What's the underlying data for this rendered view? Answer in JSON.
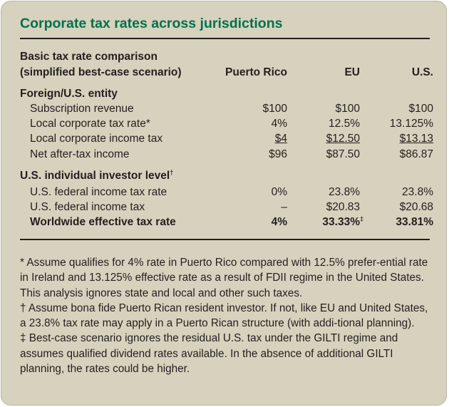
{
  "title": "Corporate tax rates across jurisdictions",
  "header": {
    "line1": "Basic tax rate comparison",
    "line2": "(simplified best-case scenario)",
    "cols": [
      "Puerto Rico",
      "EU",
      "U.S."
    ]
  },
  "section1": {
    "heading": "Foreign/U.S. entity",
    "rows": [
      {
        "label": "Subscription revenue",
        "values": [
          "$100",
          "$100",
          "$100"
        ]
      },
      {
        "label": "Local corporate tax rate*",
        "values": [
          "4%",
          "12.5%",
          "13.125%"
        ]
      },
      {
        "label": "Local corporate income tax",
        "values": [
          "$4",
          "$12.50",
          "$13.13"
        ]
      },
      {
        "label": "Net after-tax income",
        "values": [
          "$96",
          "$87.50",
          "$86.87"
        ]
      }
    ]
  },
  "section2": {
    "heading": "U.S. individual investor level",
    "heading_mark": "†",
    "rows": [
      {
        "label": "U.S. federal income tax rate",
        "values": [
          "0%",
          "23.8%",
          "23.8%"
        ]
      },
      {
        "label": "U.S. federal income tax",
        "values": [
          "–",
          "$20.83",
          "$20.68"
        ]
      },
      {
        "label": "Worldwide effective tax rate",
        "values": [
          "4%",
          "33.33%",
          "33.81%"
        ],
        "mark": "‡"
      }
    ]
  },
  "notes": [
    "* Assume qualifies for 4% rate in Puerto Rico compared with 12.5% prefer-ential rate in Ireland and 13.125% effective rate as a result of FDII regime in the United States. This analysis ignores state and local and other such taxes.",
    "† Assume bona fide Puerto Rican resident investor. If not, like EU and United States, a 23.8% tax rate may apply in a Puerto Rican structure (with addi-tional planning).",
    "‡ Best-case scenario ignores the residual U.S. tax under the GILTI regime and assumes qualified dividend rates available. In the absence of additional GILTI planning, the rates could be higher."
  ],
  "colors": {
    "title": "#00704f",
    "background": "#d7d2bd"
  }
}
